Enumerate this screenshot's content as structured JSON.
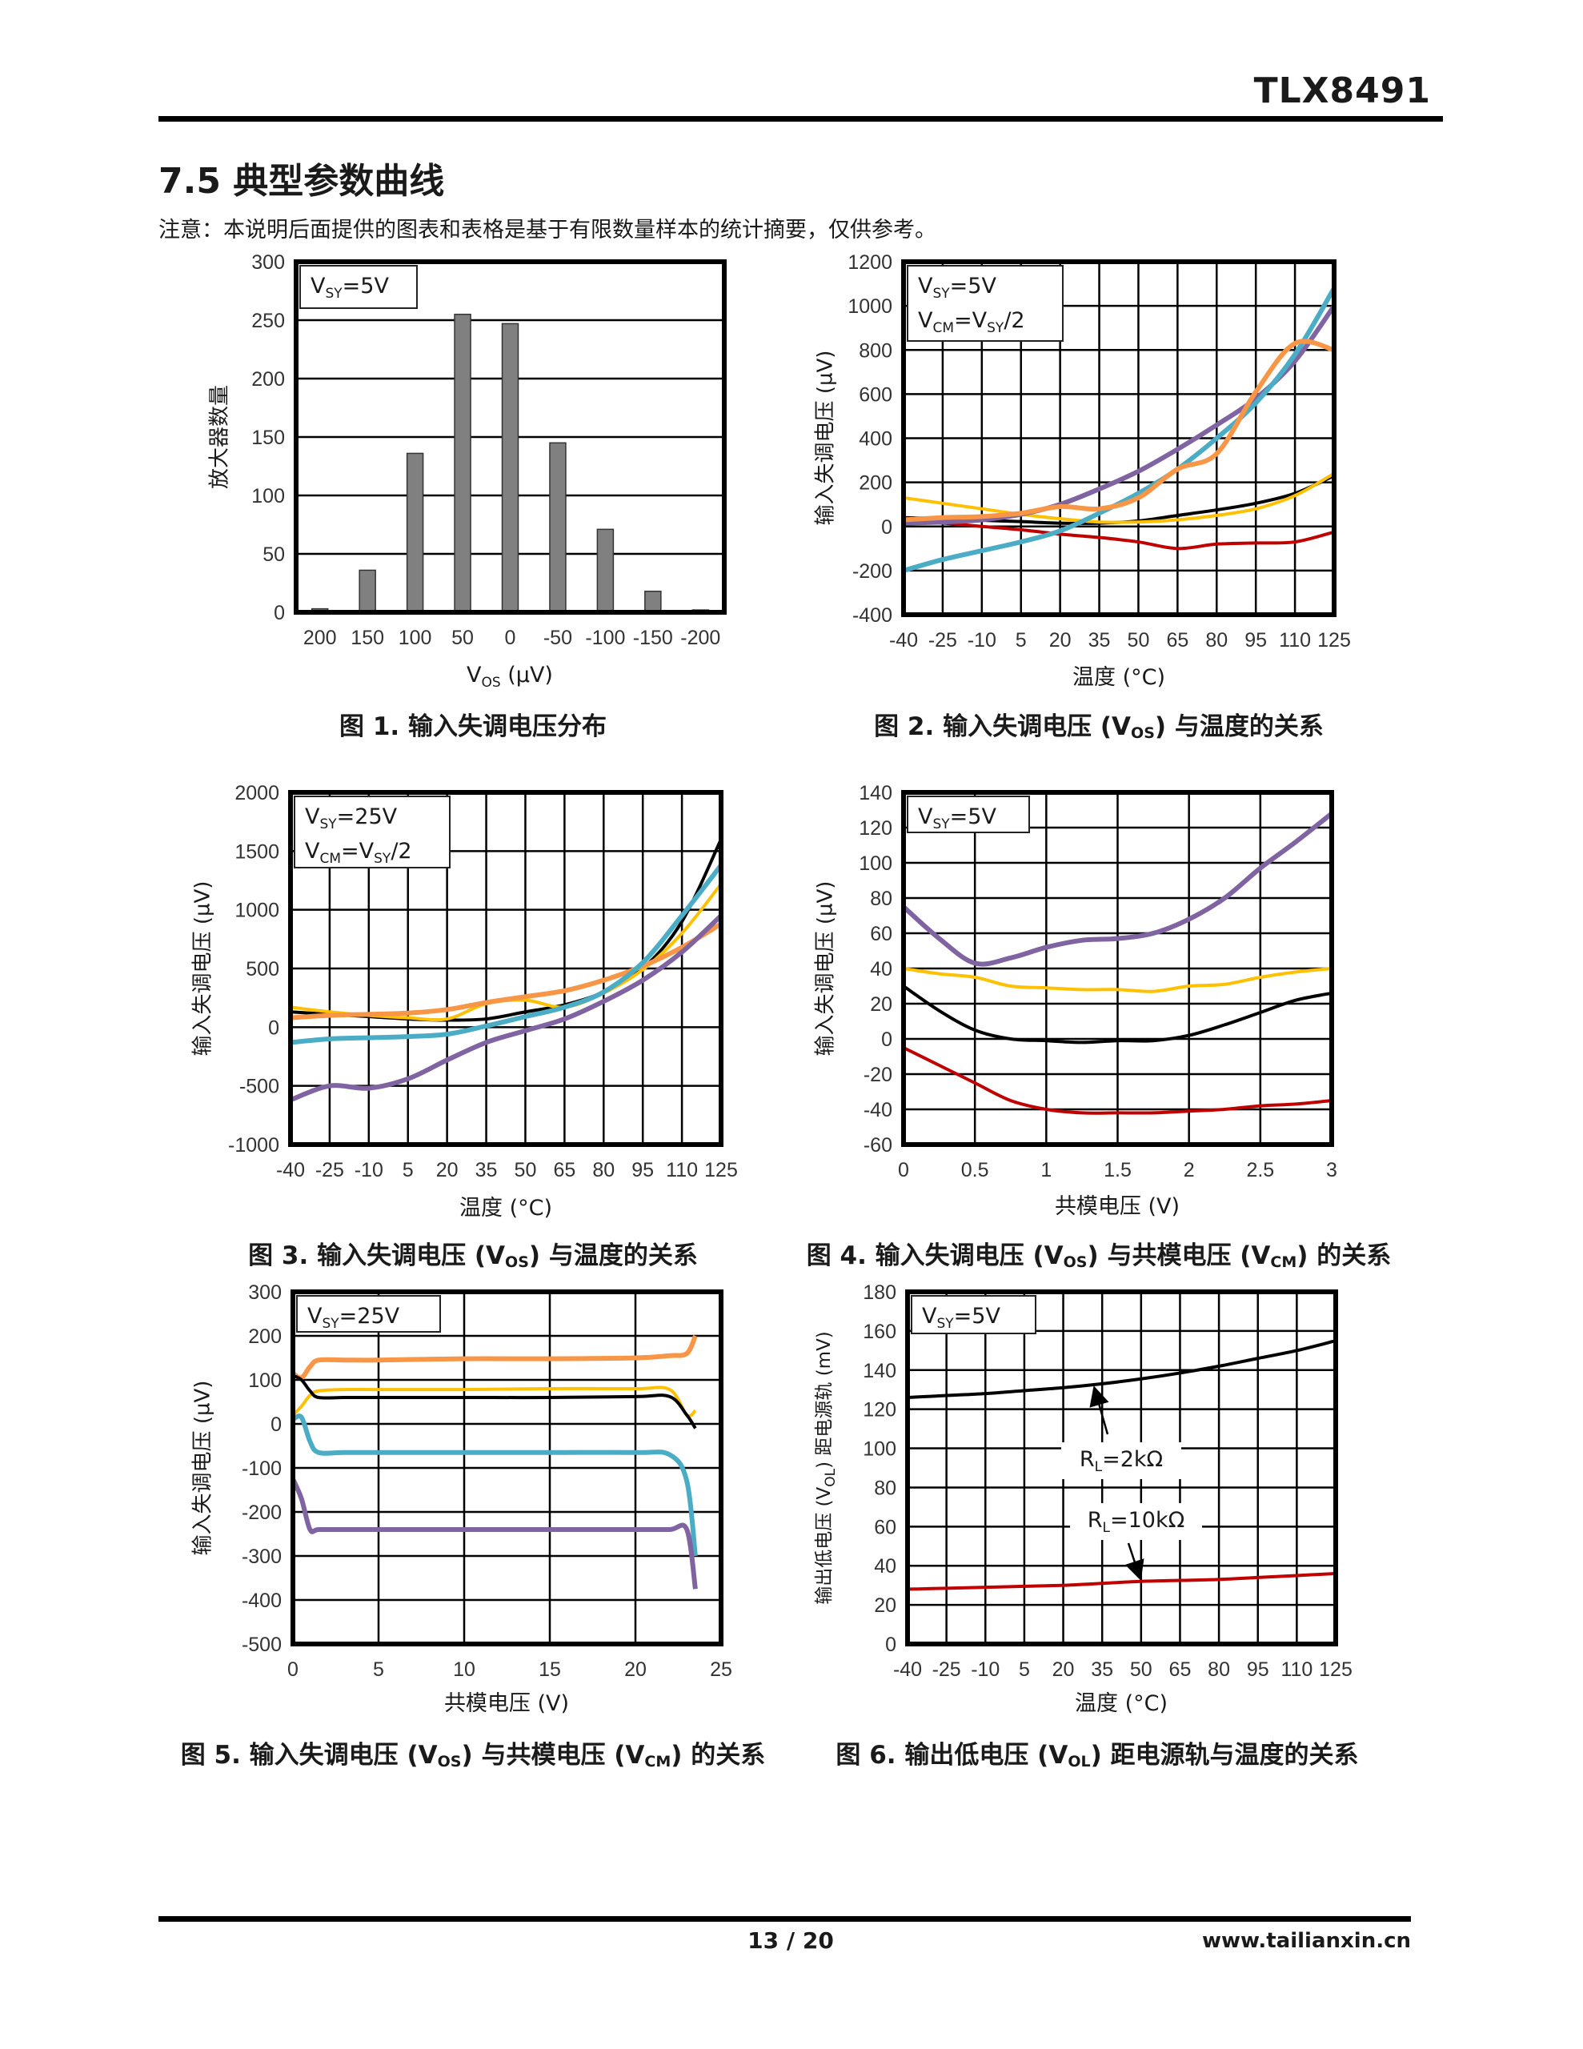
{
  "header": {
    "doc_id": "TLX8491"
  },
  "section": {
    "title": "7.5 典型参数曲线",
    "note": "注意：本说明后面提供的图表和表格是基于有限数量样本的统计摘要，仅供参考。"
  },
  "footer": {
    "page": "13 / 20",
    "site": "www.tailianxin.cn"
  },
  "colors": {
    "black": "#000000",
    "yellow": "#FFC000",
    "red": "#C00000",
    "purple": "#8064A2",
    "cyan": "#4BACC6",
    "orange": "#F79646",
    "bar": "#808080"
  },
  "chart_data": [
    {
      "type": "bar",
      "caption": [
        {
          "t": "图 1. 输入失调电压分布"
        }
      ],
      "legend": [
        [
          {
            "t": "V"
          },
          {
            "t": "SY",
            "sub": true
          },
          {
            "t": "=5V"
          }
        ]
      ],
      "xlabel": [
        {
          "t": "V"
        },
        {
          "t": "OS",
          "sub": true
        },
        {
          "t": " (µV)"
        }
      ],
      "ylabel": [
        {
          "t": "放大器数量"
        }
      ],
      "categories": [
        "200",
        "150",
        "100",
        "50",
        "0",
        "-50",
        "-100",
        "-150",
        "-200"
      ],
      "values": [
        3,
        36,
        136,
        255,
        247,
        145,
        71,
        18,
        2
      ],
      "ylim": [
        0,
        300
      ],
      "yticks": [
        0,
        50,
        100,
        150,
        200,
        250,
        300
      ],
      "grid": "horizontal"
    },
    {
      "type": "line",
      "caption": [
        {
          "t": "图 2. 输入失调电压 ("
        },
        {
          "t": "V"
        },
        {
          "t": "OS",
          "sub": true
        },
        {
          "t": ") 与温度的关系"
        }
      ],
      "legend": [
        [
          {
            "t": "V"
          },
          {
            "t": "SY",
            "sub": true
          },
          {
            "t": "=5V"
          }
        ],
        [
          {
            "t": "V"
          },
          {
            "t": "CM",
            "sub": true
          },
          {
            "t": "=V"
          },
          {
            "t": "SY",
            "sub": true
          },
          {
            "t": "/2"
          }
        ]
      ],
      "xlabel": [
        {
          "t": "温度 (°C)"
        }
      ],
      "ylabel": [
        {
          "t": "输入失调电压 (µV)"
        }
      ],
      "x": [
        -40,
        -25,
        -10,
        5,
        20,
        35,
        50,
        65,
        80,
        95,
        110,
        125
      ],
      "xlim": [
        -40,
        125
      ],
      "xticks": [
        -40,
        -25,
        -10,
        5,
        20,
        35,
        50,
        65,
        80,
        95,
        110,
        125
      ],
      "ylim": [
        -400,
        1200
      ],
      "yticks": [
        -400,
        -200,
        0,
        200,
        400,
        600,
        800,
        1000,
        1200
      ],
      "grid": "both",
      "series": [
        {
          "color": "#000000",
          "values": [
            40,
            35,
            28,
            22,
            15,
            15,
            25,
            50,
            75,
            105,
            150,
            230
          ]
        },
        {
          "color": "#FFC000",
          "values": [
            130,
            105,
            80,
            55,
            35,
            20,
            20,
            30,
            50,
            80,
            140,
            240
          ]
        },
        {
          "color": "#C00000",
          "values": [
            20,
            15,
            0,
            -15,
            -35,
            -50,
            -70,
            -100,
            -80,
            -75,
            -70,
            -25
          ]
        },
        {
          "color": "#8064A2",
          "values": [
            15,
            20,
            30,
            55,
            100,
            170,
            250,
            350,
            460,
            580,
            750,
            1000
          ]
        },
        {
          "color": "#4BACC6",
          "values": [
            -200,
            -150,
            -110,
            -70,
            -20,
            60,
            150,
            260,
            400,
            560,
            780,
            1080
          ]
        },
        {
          "color": "#F79646",
          "values": [
            30,
            40,
            45,
            60,
            90,
            80,
            130,
            260,
            330,
            610,
            830,
            800
          ]
        }
      ]
    },
    {
      "type": "line",
      "caption": [
        {
          "t": "图 3. 输入失调电压 ("
        },
        {
          "t": "V"
        },
        {
          "t": "OS",
          "sub": true
        },
        {
          "t": ") 与温度的关系"
        }
      ],
      "legend": [
        [
          {
            "t": "V"
          },
          {
            "t": "SY",
            "sub": true
          },
          {
            "t": "=25V"
          }
        ],
        [
          {
            "t": "V"
          },
          {
            "t": "CM",
            "sub": true
          },
          {
            "t": "=V"
          },
          {
            "t": "SY",
            "sub": true
          },
          {
            "t": "/2"
          }
        ]
      ],
      "xlabel": [
        {
          "t": "温度 (°C)"
        }
      ],
      "ylabel": [
        {
          "t": "输入失调电压 (µV)"
        }
      ],
      "x": [
        -40,
        -25,
        -10,
        5,
        20,
        35,
        50,
        65,
        80,
        95,
        110,
        125
      ],
      "xlim": [
        -40,
        125
      ],
      "xticks": [
        -40,
        -25,
        -10,
        5,
        20,
        35,
        50,
        65,
        80,
        95,
        110,
        125
      ],
      "ylim": [
        -1000,
        2000
      ],
      "yticks": [
        -1000,
        -500,
        0,
        500,
        1000,
        1500,
        2000
      ],
      "grid": "both",
      "series": [
        {
          "color": "#000000",
          "values": [
            130,
            110,
            90,
            70,
            60,
            70,
            130,
            190,
            300,
            500,
            900,
            1600
          ]
        },
        {
          "color": "#FFC000",
          "values": [
            170,
            130,
            100,
            80,
            70,
            200,
            230,
            170,
            290,
            490,
            800,
            1220
          ]
        },
        {
          "color": "#F79646",
          "values": [
            80,
            100,
            110,
            120,
            150,
            210,
            260,
            310,
            400,
            520,
            680,
            880
          ]
        },
        {
          "color": "#4BACC6",
          "values": [
            -130,
            -100,
            -90,
            -80,
            -60,
            10,
            90,
            170,
            300,
            550,
            950,
            1380
          ]
        },
        {
          "color": "#8064A2",
          "values": [
            -620,
            -500,
            -520,
            -440,
            -280,
            -130,
            -30,
            70,
            220,
            400,
            640,
            950
          ]
        }
      ]
    },
    {
      "type": "line",
      "caption": [
        {
          "t": "图 4. 输入失调电压 ("
        },
        {
          "t": "V"
        },
        {
          "t": "OS",
          "sub": true
        },
        {
          "t": ") 与共模电压 ("
        },
        {
          "t": "V"
        },
        {
          "t": "CM",
          "sub": true
        },
        {
          "t": ") 的关系"
        }
      ],
      "legend": [
        [
          {
            "t": "V"
          },
          {
            "t": "SY",
            "sub": true
          },
          {
            "t": "=5V"
          }
        ]
      ],
      "xlabel": [
        {
          "t": "共模电压 (V)"
        }
      ],
      "ylabel": [
        {
          "t": "输入失调电压 (µV)"
        }
      ],
      "x": [
        0,
        0.25,
        0.5,
        0.75,
        1,
        1.25,
        1.5,
        1.75,
        2,
        2.25,
        2.5,
        2.75,
        3
      ],
      "xlim": [
        0,
        3
      ],
      "xticks": [
        0,
        0.5,
        1,
        1.5,
        2,
        2.5,
        3
      ],
      "ylim": [
        -60,
        140
      ],
      "yticks": [
        -60,
        -40,
        -20,
        0,
        20,
        40,
        60,
        80,
        100,
        120,
        140
      ],
      "grid": "both",
      "series": [
        {
          "color": "#8064A2",
          "values": [
            75,
            57,
            43,
            46,
            52,
            56,
            57,
            60,
            68,
            80,
            97,
            112,
            128
          ]
        },
        {
          "color": "#FFC000",
          "values": [
            40,
            37,
            35,
            30,
            29,
            28,
            28,
            27,
            30,
            31,
            35,
            38,
            40
          ]
        },
        {
          "color": "#000000",
          "values": [
            30,
            16,
            5,
            0,
            -1,
            -2,
            -1,
            -1,
            2,
            8,
            15,
            22,
            26
          ]
        },
        {
          "color": "#C00000",
          "values": [
            -5,
            -15,
            -25,
            -35,
            -40,
            -42,
            -42,
            -42,
            -41,
            -40,
            -38,
            -37,
            -35
          ]
        }
      ]
    },
    {
      "type": "line",
      "caption": [
        {
          "t": "图 5. 输入失调电压 ("
        },
        {
          "t": "V"
        },
        {
          "t": "OS",
          "sub": true
        },
        {
          "t": ") 与共模电压 ("
        },
        {
          "t": "V"
        },
        {
          "t": "CM",
          "sub": true
        },
        {
          "t": ") 的关系"
        }
      ],
      "legend": [
        [
          {
            "t": "V"
          },
          {
            "t": "SY",
            "sub": true
          },
          {
            "t": "=25V"
          }
        ]
      ],
      "xlabel": [
        {
          "t": "共模电压 (V)"
        }
      ],
      "ylabel": [
        {
          "t": "输入失调电压 (µV)"
        }
      ],
      "x": [
        0,
        0.5,
        1,
        1.5,
        3,
        5,
        10,
        15,
        20,
        22,
        23,
        23.5
      ],
      "xlim": [
        0,
        25
      ],
      "xticks": [
        0,
        5,
        10,
        15,
        20,
        25
      ],
      "ylim": [
        -500,
        300
      ],
      "yticks": [
        -500,
        -400,
        -300,
        -200,
        -100,
        0,
        100,
        200,
        300
      ],
      "grid": "both",
      "series": [
        {
          "color": "#F79646",
          "values": [
            115,
            105,
            130,
            145,
            145,
            145,
            148,
            148,
            150,
            155,
            160,
            200
          ]
        },
        {
          "color": "#FFC000",
          "values": [
            20,
            40,
            65,
            75,
            78,
            78,
            78,
            80,
            80,
            78,
            20,
            30
          ]
        },
        {
          "color": "#000000",
          "values": [
            110,
            100,
            75,
            60,
            60,
            60,
            60,
            60,
            62,
            62,
            20,
            -10
          ]
        },
        {
          "color": "#4BACC6",
          "values": [
            10,
            15,
            -40,
            -65,
            -65,
            -65,
            -65,
            -65,
            -65,
            -70,
            -130,
            -300
          ]
        },
        {
          "color": "#8064A2",
          "values": [
            -125,
            -170,
            -240,
            -240,
            -240,
            -240,
            -240,
            -240,
            -240,
            -240,
            -240,
            -375
          ]
        }
      ]
    },
    {
      "type": "line",
      "caption": [
        {
          "t": "图 6. 输出低电压 ("
        },
        {
          "t": "V"
        },
        {
          "t": "OL",
          "sub": true
        },
        {
          "t": ") 距电源轨与温度的关系"
        }
      ],
      "legend": [
        [
          {
            "t": "V"
          },
          {
            "t": "SY",
            "sub": true
          },
          {
            "t": "=5V"
          }
        ]
      ],
      "xlabel": [
        {
          "t": "温度 (°C)"
        }
      ],
      "ylabel": [
        {
          "t": "输出低电压 ("
        },
        {
          "t": "V"
        },
        {
          "t": "OL",
          "sub": true
        },
        {
          "t": ") 距电源轨 (mV)"
        }
      ],
      "x": [
        -40,
        -25,
        -10,
        5,
        20,
        35,
        50,
        65,
        80,
        95,
        110,
        125
      ],
      "xlim": [
        -40,
        125
      ],
      "xticks": [
        -40,
        -25,
        -10,
        5,
        20,
        35,
        50,
        65,
        80,
        95,
        110,
        125
      ],
      "ylim": [
        0,
        180
      ],
      "yticks": [
        0,
        20,
        40,
        60,
        80,
        100,
        120,
        140,
        160,
        180
      ],
      "grid": "both",
      "annotations": [
        [
          {
            "t": "R"
          },
          {
            "t": "L",
            "sub": true
          },
          {
            "t": "=2kΩ"
          }
        ],
        [
          {
            "t": "R"
          },
          {
            "t": "L",
            "sub": true
          },
          {
            "t": "=10kΩ"
          }
        ]
      ],
      "series": [
        {
          "name": "R_L=2kΩ",
          "color": "#000000",
          "values": [
            126,
            127,
            128,
            129.5,
            131,
            133,
            135.5,
            138.5,
            142,
            146,
            150,
            155
          ]
        },
        {
          "name": "R_L=10kΩ",
          "color": "#C00000",
          "values": [
            28,
            28.5,
            29,
            29.5,
            30,
            31,
            32,
            32.5,
            33,
            34,
            35,
            36
          ]
        }
      ]
    }
  ]
}
